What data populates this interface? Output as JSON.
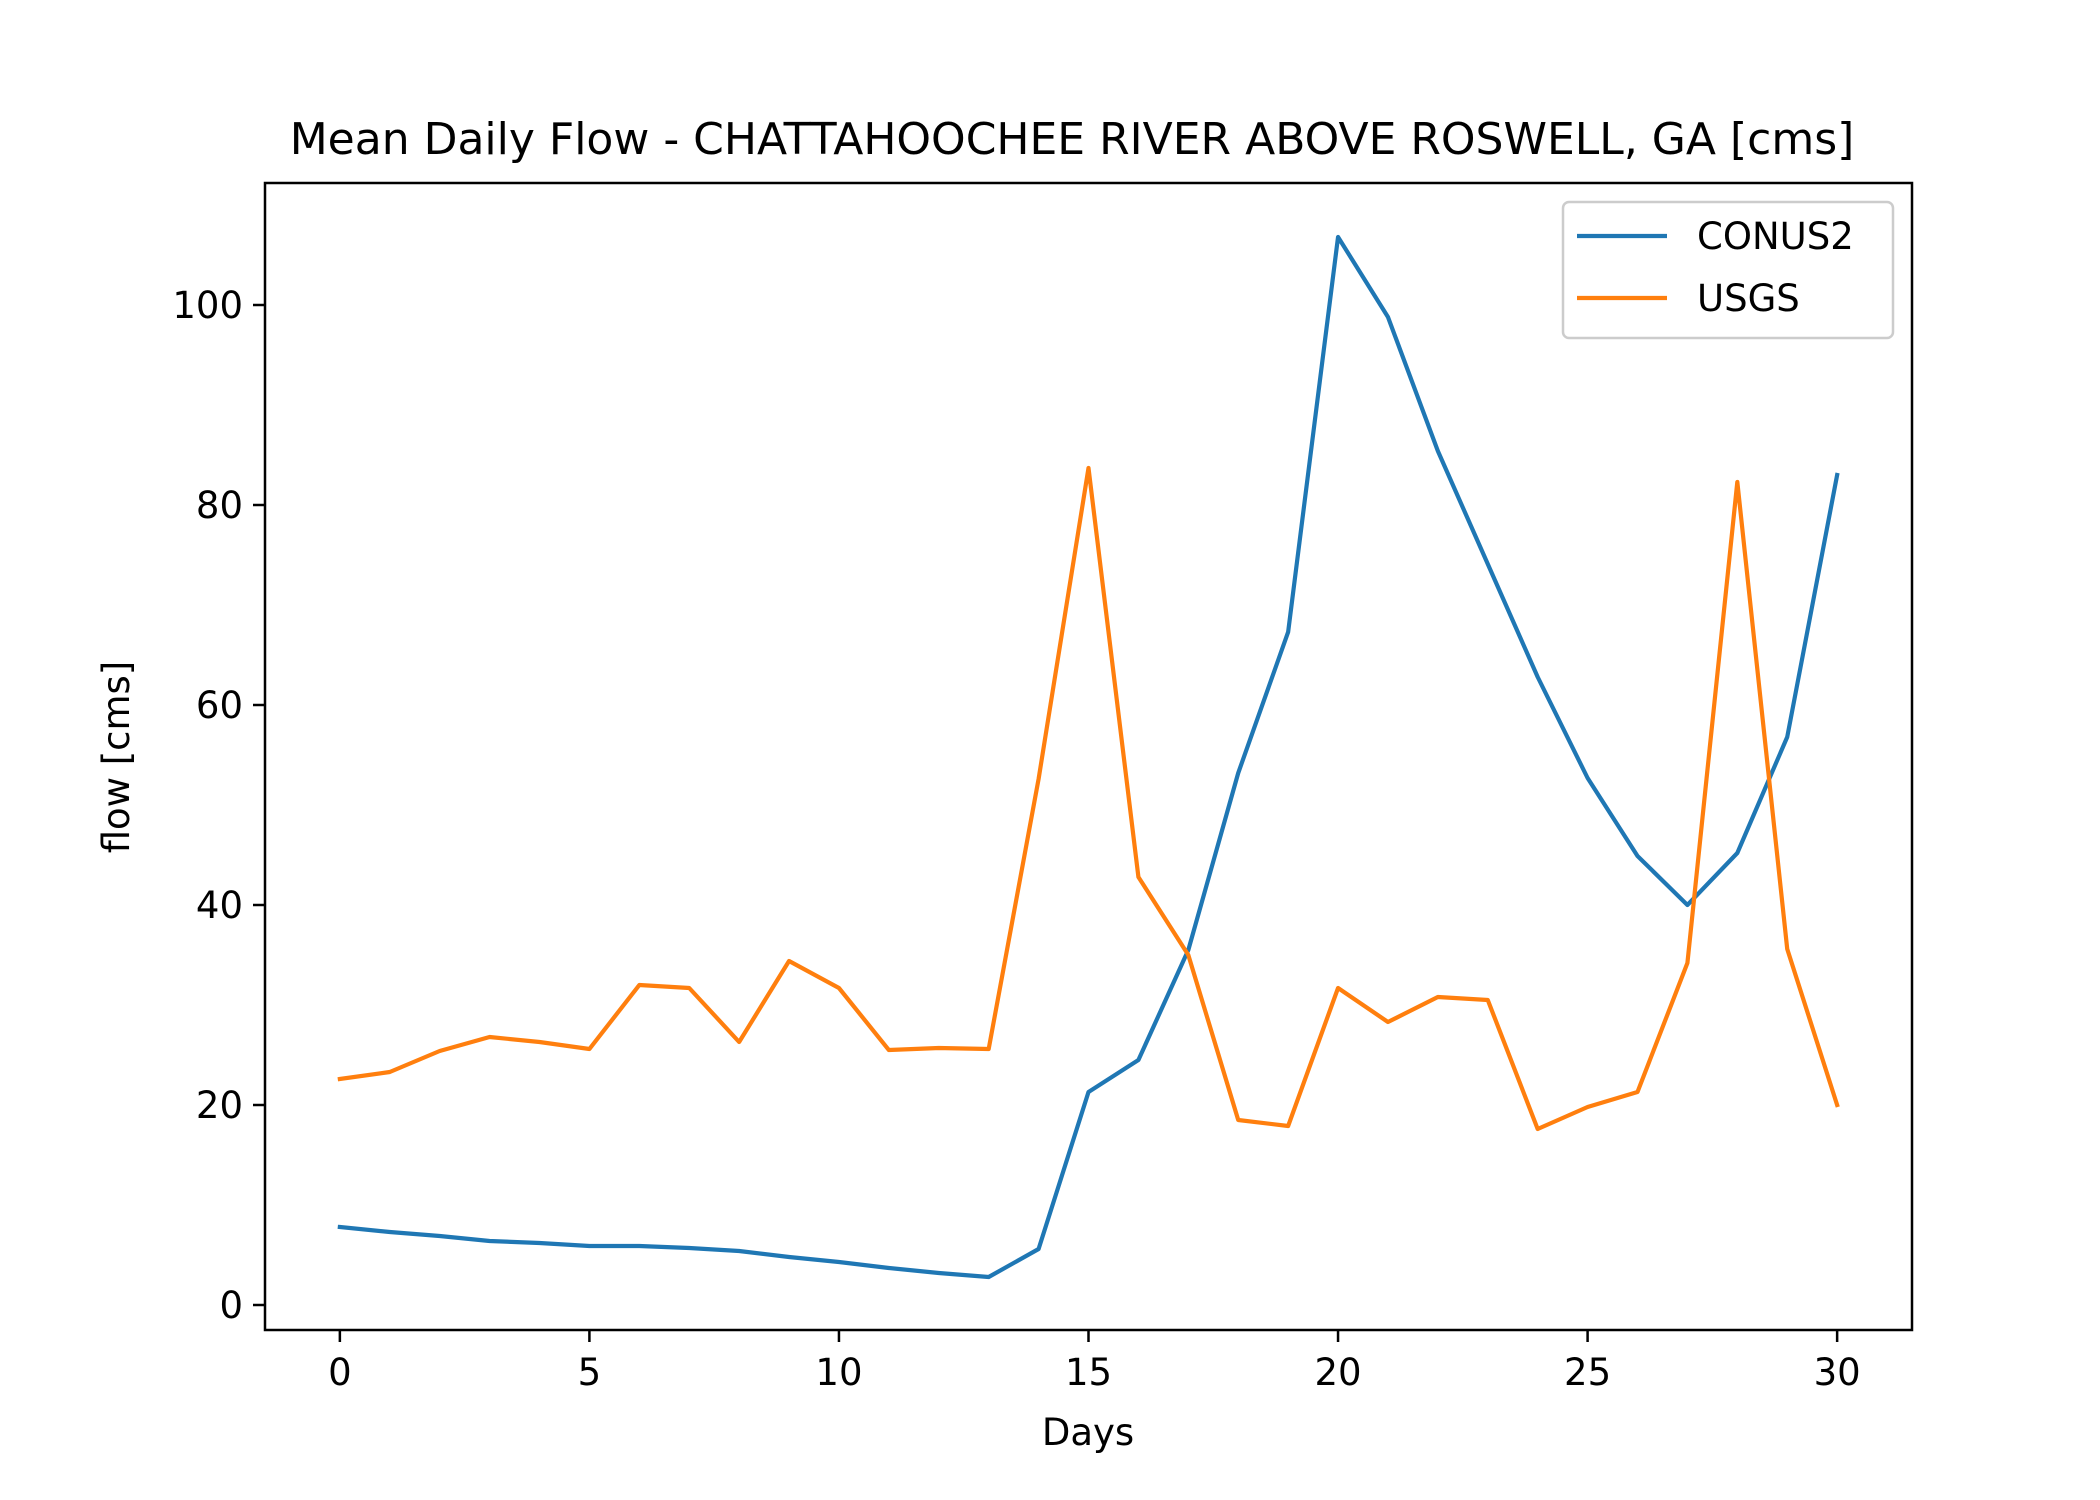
{
  "chart_data": {
    "type": "line",
    "title": "Mean Daily Flow - CHATTAHOOCHEE RIVER ABOVE ROSWELL, GA [cms]",
    "xlabel": "Days",
    "ylabel": "flow [cms]",
    "xlim": [
      -1.5,
      31.5
    ],
    "ylim": [
      -2.5,
      112.2
    ],
    "xticks": [
      0,
      5,
      10,
      15,
      20,
      25,
      30
    ],
    "yticks": [
      0,
      20,
      40,
      60,
      80,
      100
    ],
    "grid": false,
    "legend_position": "top-right",
    "x": [
      0,
      1,
      2,
      3,
      4,
      5,
      6,
      7,
      8,
      9,
      10,
      11,
      12,
      13,
      14,
      15,
      16,
      17,
      18,
      19,
      20,
      21,
      22,
      23,
      24,
      25,
      26,
      27,
      28,
      29,
      30
    ],
    "series": [
      {
        "name": "CONUS2",
        "color": "#1f77b4",
        "values": [
          7.8,
          7.3,
          6.9,
          6.4,
          6.2,
          5.9,
          5.9,
          5.7,
          5.4,
          4.8,
          4.3,
          3.7,
          3.2,
          2.8,
          5.6,
          21.3,
          24.5,
          35.5,
          53.2,
          67.3,
          106.8,
          98.8,
          85.4,
          74.1,
          62.8,
          52.7,
          44.9,
          40.0,
          45.2,
          56.8,
          83.0
        ]
      },
      {
        "name": "USGS",
        "color": "#ff7f0e",
        "values": [
          22.6,
          23.3,
          25.4,
          26.8,
          26.3,
          25.6,
          32.0,
          31.7,
          26.3,
          34.4,
          31.7,
          25.5,
          25.7,
          25.6,
          52.6,
          83.7,
          42.8,
          35.0,
          18.5,
          17.9,
          31.7,
          28.3,
          30.8,
          30.5,
          17.6,
          19.8,
          21.3,
          34.2,
          82.3,
          35.6,
          20.0
        ]
      }
    ]
  }
}
